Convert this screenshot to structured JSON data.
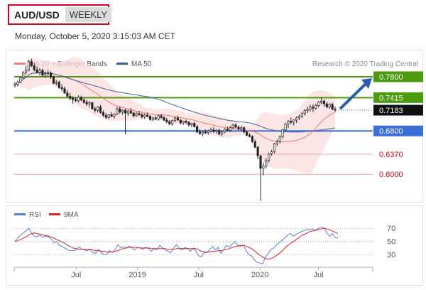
{
  "header": {
    "symbol": "AUD/USD",
    "period": "WEEKLY",
    "timestamp": "Monday, October 5, 2020 3:15:03 AM CET"
  },
  "chart_data": [
    {
      "type": "candlestick",
      "legend": [
        {
          "label": "MA 20 + Bollinger Bands",
          "color": "#f08080"
        },
        {
          "label": "MA 50",
          "color": "#2e5f9e"
        }
      ],
      "source": "Research © 2020 Trading Central",
      "x_ticks": [
        "Jul",
        "2019",
        "Jul",
        "2020",
        "Jul"
      ],
      "levels": [
        {
          "value": 0.78,
          "label": "0.7800",
          "color": "#4c9a0e"
        },
        {
          "value": 0.7415,
          "label": "0.7415",
          "color": "#4c9a0e"
        },
        {
          "value": 0.7183,
          "label": "0.7183",
          "color": "#333333"
        },
        {
          "value": 0.68,
          "label": "0.6800",
          "color": "#3a6fd8"
        },
        {
          "value": 0.637,
          "label": "0.6370",
          "color": "#e05a5a"
        },
        {
          "value": 0.6,
          "label": "0.6000",
          "color": "#e05a5a"
        }
      ],
      "current_price": 0.7183,
      "target": 0.78,
      "ohlc": [
        [
          0.764,
          0.77,
          0.76,
          0.766
        ],
        [
          0.766,
          0.773,
          0.762,
          0.77
        ],
        [
          0.77,
          0.78,
          0.768,
          0.778
        ],
        [
          0.778,
          0.79,
          0.776,
          0.788
        ],
        [
          0.788,
          0.8,
          0.784,
          0.792
        ],
        [
          0.792,
          0.811,
          0.79,
          0.808
        ],
        [
          0.808,
          0.813,
          0.798,
          0.8
        ],
        [
          0.8,
          0.805,
          0.79,
          0.793
        ],
        [
          0.793,
          0.799,
          0.786,
          0.788
        ],
        [
          0.788,
          0.796,
          0.783,
          0.792
        ],
        [
          0.792,
          0.795,
          0.78,
          0.783
        ],
        [
          0.783,
          0.79,
          0.778,
          0.786
        ],
        [
          0.786,
          0.793,
          0.78,
          0.787
        ],
        [
          0.787,
          0.79,
          0.776,
          0.78
        ],
        [
          0.78,
          0.782,
          0.766,
          0.768
        ],
        [
          0.768,
          0.774,
          0.764,
          0.77
        ],
        [
          0.77,
          0.773,
          0.758,
          0.76
        ],
        [
          0.76,
          0.766,
          0.753,
          0.758
        ],
        [
          0.758,
          0.762,
          0.748,
          0.75
        ],
        [
          0.75,
          0.756,
          0.742,
          0.744
        ],
        [
          0.744,
          0.75,
          0.737,
          0.74
        ],
        [
          0.74,
          0.744,
          0.73,
          0.738
        ],
        [
          0.738,
          0.742,
          0.733,
          0.736
        ],
        [
          0.736,
          0.746,
          0.732,
          0.742
        ],
        [
          0.742,
          0.745,
          0.735,
          0.737
        ],
        [
          0.737,
          0.74,
          0.73,
          0.733
        ],
        [
          0.733,
          0.737,
          0.726,
          0.73
        ],
        [
          0.73,
          0.735,
          0.723,
          0.732
        ],
        [
          0.732,
          0.734,
          0.719,
          0.721
        ],
        [
          0.721,
          0.725,
          0.714,
          0.718
        ],
        [
          0.718,
          0.726,
          0.714,
          0.724
        ],
        [
          0.724,
          0.728,
          0.712,
          0.714
        ],
        [
          0.714,
          0.718,
          0.706,
          0.709
        ],
        [
          0.709,
          0.713,
          0.702,
          0.705
        ],
        [
          0.705,
          0.711,
          0.702,
          0.71
        ],
        [
          0.71,
          0.715,
          0.706,
          0.707
        ],
        [
          0.707,
          0.713,
          0.703,
          0.711
        ],
        [
          0.711,
          0.724,
          0.709,
          0.721
        ],
        [
          0.721,
          0.725,
          0.712,
          0.715
        ],
        [
          0.715,
          0.72,
          0.71,
          0.718
        ],
        [
          0.718,
          0.721,
          0.674,
          0.713
        ],
        [
          0.713,
          0.719,
          0.708,
          0.717
        ],
        [
          0.717,
          0.722,
          0.711,
          0.713
        ],
        [
          0.713,
          0.716,
          0.705,
          0.708
        ],
        [
          0.708,
          0.715,
          0.706,
          0.712
        ],
        [
          0.712,
          0.717,
          0.708,
          0.71
        ],
        [
          0.71,
          0.713,
          0.703,
          0.706
        ],
        [
          0.706,
          0.712,
          0.702,
          0.709
        ],
        [
          0.709,
          0.714,
          0.705,
          0.707
        ],
        [
          0.707,
          0.709,
          0.699,
          0.701
        ],
        [
          0.701,
          0.706,
          0.698,
          0.704
        ],
        [
          0.704,
          0.708,
          0.7,
          0.702
        ],
        [
          0.702,
          0.71,
          0.699,
          0.708
        ],
        [
          0.708,
          0.711,
          0.702,
          0.705
        ],
        [
          0.705,
          0.707,
          0.698,
          0.7
        ],
        [
          0.7,
          0.704,
          0.694,
          0.697
        ],
        [
          0.697,
          0.7,
          0.69,
          0.693
        ],
        [
          0.693,
          0.701,
          0.69,
          0.699
        ],
        [
          0.699,
          0.706,
          0.696,
          0.704
        ],
        [
          0.704,
          0.708,
          0.699,
          0.7
        ],
        [
          0.7,
          0.702,
          0.692,
          0.695
        ],
        [
          0.695,
          0.699,
          0.691,
          0.698
        ],
        [
          0.698,
          0.701,
          0.693,
          0.696
        ],
        [
          0.696,
          0.698,
          0.688,
          0.691
        ],
        [
          0.691,
          0.695,
          0.687,
          0.694
        ],
        [
          0.694,
          0.697,
          0.686,
          0.688
        ],
        [
          0.688,
          0.691,
          0.676,
          0.678
        ],
        [
          0.678,
          0.683,
          0.673,
          0.675
        ],
        [
          0.675,
          0.68,
          0.67,
          0.678
        ],
        [
          0.678,
          0.683,
          0.674,
          0.677
        ],
        [
          0.677,
          0.682,
          0.673,
          0.68
        ],
        [
          0.68,
          0.686,
          0.677,
          0.682
        ],
        [
          0.682,
          0.687,
          0.676,
          0.679
        ],
        [
          0.679,
          0.683,
          0.675,
          0.681
        ],
        [
          0.681,
          0.684,
          0.672,
          0.674
        ],
        [
          0.674,
          0.68,
          0.67,
          0.678
        ],
        [
          0.678,
          0.685,
          0.676,
          0.683
        ],
        [
          0.683,
          0.688,
          0.679,
          0.681
        ],
        [
          0.681,
          0.689,
          0.678,
          0.686
        ],
        [
          0.686,
          0.693,
          0.683,
          0.691
        ],
        [
          0.691,
          0.694,
          0.685,
          0.687
        ],
        [
          0.687,
          0.69,
          0.681,
          0.684
        ],
        [
          0.684,
          0.689,
          0.68,
          0.686
        ],
        [
          0.686,
          0.688,
          0.676,
          0.678
        ],
        [
          0.678,
          0.68,
          0.67,
          0.672
        ],
        [
          0.672,
          0.676,
          0.668,
          0.67
        ],
        [
          0.67,
          0.672,
          0.658,
          0.66
        ],
        [
          0.66,
          0.664,
          0.648,
          0.65
        ],
        [
          0.65,
          0.652,
          0.628,
          0.634
        ],
        [
          0.634,
          0.636,
          0.551,
          0.611
        ],
        [
          0.611,
          0.622,
          0.598,
          0.615
        ],
        [
          0.615,
          0.63,
          0.611,
          0.625
        ],
        [
          0.625,
          0.64,
          0.622,
          0.638
        ],
        [
          0.638,
          0.645,
          0.634,
          0.642
        ],
        [
          0.642,
          0.658,
          0.639,
          0.656
        ],
        [
          0.656,
          0.664,
          0.652,
          0.66
        ],
        [
          0.66,
          0.672,
          0.657,
          0.669
        ],
        [
          0.669,
          0.684,
          0.666,
          0.682
        ],
        [
          0.682,
          0.695,
          0.68,
          0.693
        ],
        [
          0.693,
          0.7,
          0.685,
          0.698
        ],
        [
          0.698,
          0.705,
          0.692,
          0.696
        ],
        [
          0.696,
          0.702,
          0.69,
          0.7
        ],
        [
          0.7,
          0.707,
          0.695,
          0.704
        ],
        [
          0.704,
          0.71,
          0.7,
          0.707
        ],
        [
          0.707,
          0.715,
          0.704,
          0.712
        ],
        [
          0.712,
          0.72,
          0.708,
          0.718
        ],
        [
          0.718,
          0.725,
          0.713,
          0.72
        ],
        [
          0.72,
          0.728,
          0.716,
          0.724
        ],
        [
          0.724,
          0.729,
          0.715,
          0.722
        ],
        [
          0.722,
          0.73,
          0.719,
          0.727
        ],
        [
          0.727,
          0.735,
          0.724,
          0.733
        ],
        [
          0.733,
          0.741,
          0.729,
          0.735
        ],
        [
          0.735,
          0.738,
          0.725,
          0.73
        ],
        [
          0.73,
          0.734,
          0.722,
          0.724
        ],
        [
          0.724,
          0.731,
          0.721,
          0.729
        ],
        [
          0.729,
          0.732,
          0.718,
          0.72
        ],
        [
          0.72,
          0.725,
          0.715,
          0.7183
        ]
      ]
    },
    {
      "type": "line",
      "legend": [
        {
          "label": "RSI",
          "color": "#5b7fd6"
        },
        {
          "label": "9MA",
          "color": "#e32222"
        }
      ],
      "y_ticks": [
        70,
        50,
        30
      ],
      "ylim": [
        15,
        80
      ],
      "rsi": [
        50,
        55,
        60,
        63,
        66,
        70,
        62,
        58,
        57,
        60,
        56,
        58,
        57,
        54,
        48,
        50,
        44,
        42,
        40,
        37,
        36,
        36,
        37,
        42,
        38,
        37,
        36,
        38,
        33,
        32,
        38,
        33,
        30,
        30,
        36,
        33,
        38,
        45,
        40,
        42,
        40,
        43,
        40,
        37,
        41,
        40,
        38,
        41,
        39,
        35,
        39,
        37,
        44,
        40,
        37,
        35,
        33,
        40,
        45,
        40,
        37,
        41,
        39,
        35,
        40,
        35,
        28,
        27,
        33,
        33,
        38,
        42,
        37,
        41,
        32,
        38,
        44,
        41,
        46,
        50,
        44,
        42,
        45,
        36,
        30,
        28,
        22,
        18,
        17,
        16,
        26,
        32,
        38,
        40,
        45,
        48,
        52,
        56,
        60,
        62,
        58,
        61,
        63,
        65,
        67,
        68,
        68,
        69,
        67,
        70,
        72,
        70,
        63,
        58,
        62,
        56,
        55
      ],
      "ma9": [
        50,
        51,
        53,
        55,
        57,
        60,
        62,
        63,
        62,
        61,
        60,
        59,
        58,
        57,
        55,
        53,
        51,
        49,
        47,
        44,
        42,
        40,
        39,
        38,
        38,
        38,
        38,
        38,
        37,
        36,
        36,
        35,
        35,
        34,
        34,
        34,
        35,
        36,
        38,
        39,
        40,
        41,
        41,
        41,
        41,
        40,
        40,
        40,
        40,
        39,
        39,
        39,
        39,
        39,
        39,
        38,
        38,
        38,
        39,
        39,
        39,
        39,
        39,
        39,
        39,
        39,
        37,
        35,
        34,
        34,
        34,
        35,
        35,
        36,
        36,
        37,
        38,
        39,
        41,
        42,
        43,
        44,
        44,
        43,
        41,
        39,
        36,
        32,
        29,
        26,
        24,
        23,
        24,
        26,
        29,
        32,
        36,
        40,
        44,
        47,
        50,
        53,
        56,
        59,
        61,
        63,
        65,
        66,
        67,
        68,
        69,
        70,
        69,
        68,
        66,
        64,
        62
      ]
    }
  ]
}
